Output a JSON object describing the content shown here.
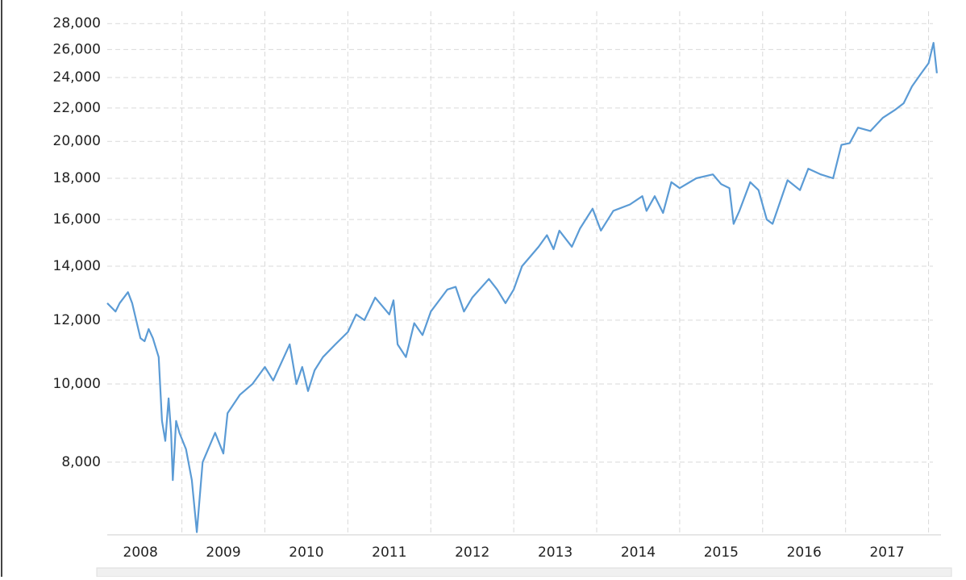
{
  "chart_data": {
    "type": "line",
    "series": [
      {
        "color": "#5b9bd5",
        "x": [
          2008.1,
          2008.2,
          2008.25,
          2008.35,
          2008.4,
          2008.5,
          2008.55,
          2008.6,
          2008.65,
          2008.72,
          2008.76,
          2008.8,
          2008.84,
          2008.87,
          2008.89,
          2008.93,
          2008.97,
          2009.05,
          2009.12,
          2009.18,
          2009.25,
          2009.4,
          2009.5,
          2009.55,
          2009.7,
          2009.85,
          2010.0,
          2010.1,
          2010.3,
          2010.38,
          2010.45,
          2010.52,
          2010.6,
          2010.7,
          2010.85,
          2011.0,
          2011.1,
          2011.2,
          2011.33,
          2011.5,
          2011.55,
          2011.6,
          2011.7,
          2011.8,
          2011.9,
          2012.0,
          2012.2,
          2012.3,
          2012.4,
          2012.5,
          2012.7,
          2012.8,
          2012.9,
          2013.0,
          2013.1,
          2013.3,
          2013.4,
          2013.48,
          2013.55,
          2013.7,
          2013.8,
          2013.95,
          2014.05,
          2014.2,
          2014.4,
          2014.55,
          2014.6,
          2014.7,
          2014.8,
          2014.9,
          2015.0,
          2015.2,
          2015.4,
          2015.5,
          2015.6,
          2015.65,
          2015.72,
          2015.85,
          2015.95,
          2016.05,
          2016.12,
          2016.3,
          2016.45,
          2016.55,
          2016.7,
          2016.85,
          2016.95,
          2017.05,
          2017.15,
          2017.3,
          2017.45,
          2017.6,
          2017.7,
          2017.8,
          2017.9,
          2018.0,
          2018.06,
          2018.1
        ],
        "values": [
          12600,
          12300,
          12600,
          13000,
          12600,
          11400,
          11300,
          11700,
          11400,
          10800,
          9000,
          8500,
          9600,
          8700,
          7600,
          9000,
          8700,
          8300,
          7600,
          6550,
          8000,
          8700,
          8200,
          9200,
          9700,
          10000,
          10500,
          10100,
          11200,
          10000,
          10500,
          9800,
          10400,
          10800,
          11200,
          11600,
          12200,
          12000,
          12800,
          12200,
          12700,
          11200,
          10800,
          11900,
          11500,
          12300,
          13100,
          13200,
          12300,
          12800,
          13500,
          13100,
          12600,
          13100,
          14000,
          14800,
          15300,
          14700,
          15500,
          14800,
          15600,
          16500,
          15500,
          16400,
          16700,
          17100,
          16400,
          17100,
          16300,
          17800,
          17500,
          18000,
          18200,
          17700,
          17500,
          15800,
          16400,
          17800,
          17400,
          16000,
          15800,
          17900,
          17400,
          18500,
          18200,
          18000,
          19800,
          19900,
          20800,
          20600,
          21400,
          21900,
          22300,
          23400,
          24200,
          25000,
          26500,
          24300
        ]
      }
    ],
    "xlim": [
      2008.1,
      2018.15
    ],
    "xticks": [
      {
        "value": 2008.5,
        "label": "2008"
      },
      {
        "value": 2009.5,
        "label": "2009"
      },
      {
        "value": 2010.5,
        "label": "2010"
      },
      {
        "value": 2011.5,
        "label": "2011"
      },
      {
        "value": 2012.5,
        "label": "2012"
      },
      {
        "value": 2013.5,
        "label": "2013"
      },
      {
        "value": 2014.5,
        "label": "2014"
      },
      {
        "value": 2015.5,
        "label": "2015"
      },
      {
        "value": 2016.5,
        "label": "2016"
      },
      {
        "value": 2017.5,
        "label": "2017"
      }
    ],
    "xgrid": [
      2009,
      2010,
      2011,
      2012,
      2013,
      2014,
      2015,
      2016,
      2017,
      2018
    ],
    "ylim": [
      6500,
      29000
    ],
    "log_scale": true,
    "grid": true,
    "yticks": [
      {
        "value": 8000,
        "label": "8,000"
      },
      {
        "value": 10000,
        "label": "10,000"
      },
      {
        "value": 12000,
        "label": "12,000"
      },
      {
        "value": 14000,
        "label": "14,000"
      },
      {
        "value": 16000,
        "label": "16,000"
      },
      {
        "value": 18000,
        "label": "18,000"
      },
      {
        "value": 20000,
        "label": "20,000"
      },
      {
        "value": 22000,
        "label": "22,000"
      },
      {
        "value": 24000,
        "label": "24,000"
      },
      {
        "value": 26000,
        "label": "26,000"
      },
      {
        "value": 28000,
        "label": "28,000"
      }
    ]
  }
}
